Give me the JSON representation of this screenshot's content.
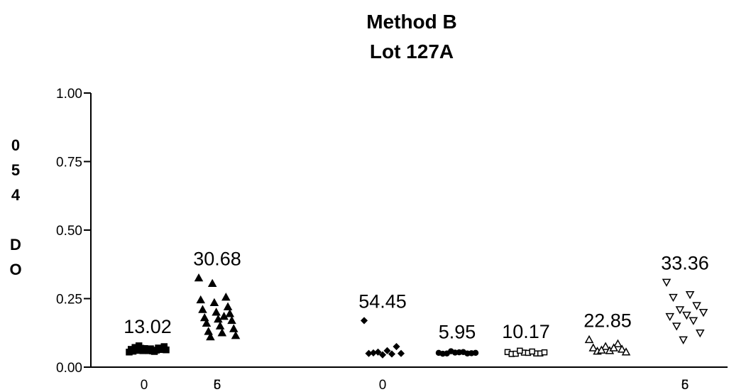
{
  "chart_data": {
    "type": "scatter",
    "title": [
      "Method B",
      "Lot 127A"
    ],
    "ylabel_chars": [
      "0",
      "5",
      "4",
      "",
      "D",
      "O"
    ],
    "ylim": [
      0.0,
      1.0
    ],
    "yticks": [
      {
        "value": 0.0,
        "label": "0.00"
      },
      {
        "value": 0.25,
        "label": "0.25"
      },
      {
        "value": 0.5,
        "label": "0.50"
      },
      {
        "value": 0.75,
        "label": "0.75"
      },
      {
        "value": 1.0,
        "label": "1.00"
      }
    ],
    "xticks": [
      {
        "group": 0,
        "label": "0"
      },
      {
        "group": 1,
        "label": "6"
      },
      {
        "group": 1,
        "label": "5"
      },
      {
        "group": 3,
        "label": "0"
      },
      {
        "group": 8,
        "label": "6"
      },
      {
        "group": 8,
        "label": "5"
      }
    ],
    "series": [
      {
        "group": 0,
        "marker": "square",
        "filled": true,
        "label": "13.02",
        "values": [
          0.055,
          0.06,
          0.062,
          0.065,
          0.068,
          0.07,
          0.058,
          0.063,
          0.066,
          0.072,
          0.06,
          0.064,
          0.061,
          0.067,
          0.075,
          0.078,
          0.059,
          0.063,
          0.069,
          0.057
        ]
      },
      {
        "group": 1,
        "marker": "triangle-up",
        "filled": true,
        "label": "30.68",
        "values": [
          0.325,
          0.305,
          0.255,
          0.245,
          0.235,
          0.22,
          0.21,
          0.2,
          0.195,
          0.18,
          0.175,
          0.17,
          0.16,
          0.15,
          0.14,
          0.13,
          0.125,
          0.115,
          0.11,
          0.185
        ]
      },
      {
        "group": 3,
        "marker": "diamond",
        "filled": true,
        "label": "54.45",
        "values": [
          0.17,
          0.075,
          0.06,
          0.055,
          0.05,
          0.05,
          0.048,
          0.045,
          0.052
        ]
      },
      {
        "group": 4,
        "marker": "circle",
        "filled": true,
        "label": "5.95",
        "values": [
          0.052,
          0.05,
          0.053,
          0.049,
          0.051,
          0.054,
          0.05,
          0.052,
          0.055,
          0.058
        ]
      },
      {
        "group": 5,
        "marker": "square",
        "filled": false,
        "label": "10.17",
        "values": [
          0.055,
          0.05,
          0.053,
          0.048,
          0.05,
          0.052,
          0.049,
          0.054,
          0.057,
          0.06
        ]
      },
      {
        "group": 6,
        "marker": "triangle-up",
        "filled": false,
        "label": "22.85",
        "values": [
          0.1,
          0.085,
          0.075,
          0.07,
          0.065,
          0.06,
          0.058,
          0.055,
          0.07,
          0.062
        ]
      },
      {
        "group": 8,
        "marker": "triangle-down",
        "filled": false,
        "label": "33.36",
        "values": [
          0.31,
          0.265,
          0.255,
          0.225,
          0.21,
          0.2,
          0.19,
          0.185,
          0.17,
          0.15,
          0.125,
          0.1
        ]
      }
    ]
  }
}
